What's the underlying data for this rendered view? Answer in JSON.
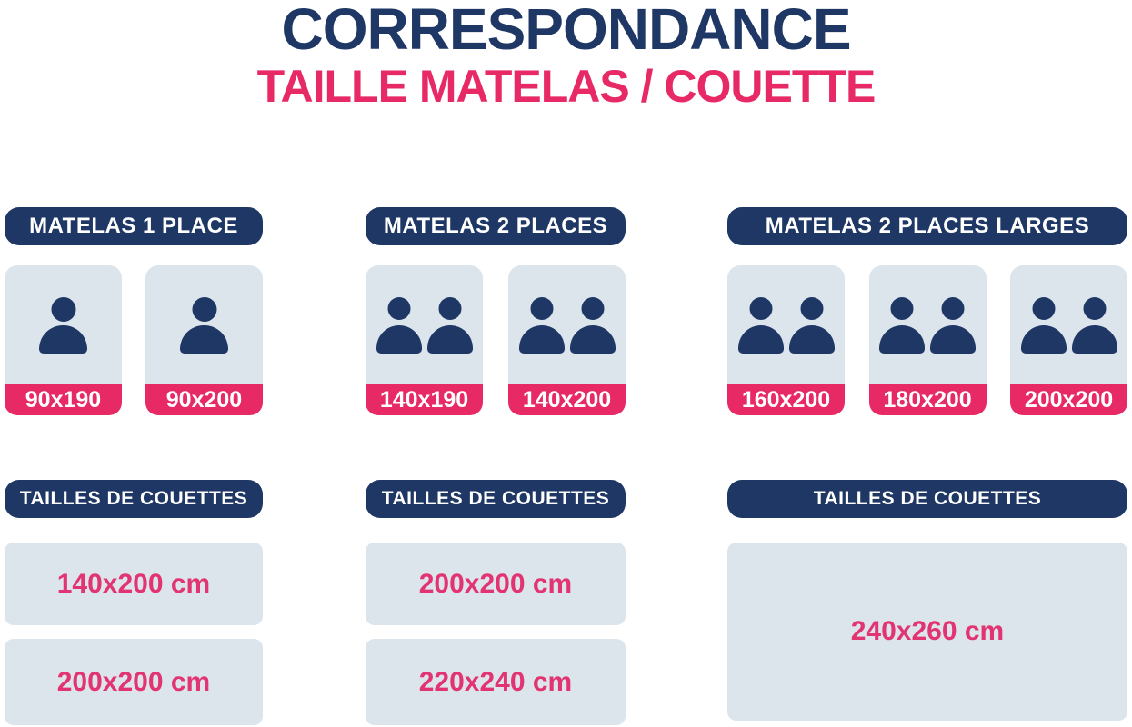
{
  "title": "CORRESPONDANCE",
  "subtitle": "TAILLE MATELAS / COUETTE",
  "colors": {
    "navy": "#1e3765",
    "pink": "#e72a66",
    "pink_text": "#e23472",
    "card_bg": "#dce5eb",
    "background": "#ffffff"
  },
  "columns": [
    {
      "header": "MATELAS 1 PLACE",
      "persons_per_mattress": 1,
      "mattresses": [
        "90x190",
        "90x200"
      ],
      "duvet_header": "TAILLES DE COUETTES",
      "duvet_sizes": [
        "140x200 cm",
        "200x200 cm"
      ]
    },
    {
      "header": "MATELAS 2 PLACES",
      "persons_per_mattress": 2,
      "mattresses": [
        "140x190",
        "140x200"
      ],
      "duvet_header": "TAILLES DE COUETTES",
      "duvet_sizes": [
        "200x200 cm",
        "220x240 cm"
      ]
    },
    {
      "header": "MATELAS 2 PLACES LARGES",
      "persons_per_mattress": 2,
      "mattresses": [
        "160x200",
        "180x200",
        "200x200"
      ],
      "duvet_header": "TAILLES DE COUETTES",
      "duvet_sizes": [
        "240x260 cm"
      ]
    }
  ]
}
